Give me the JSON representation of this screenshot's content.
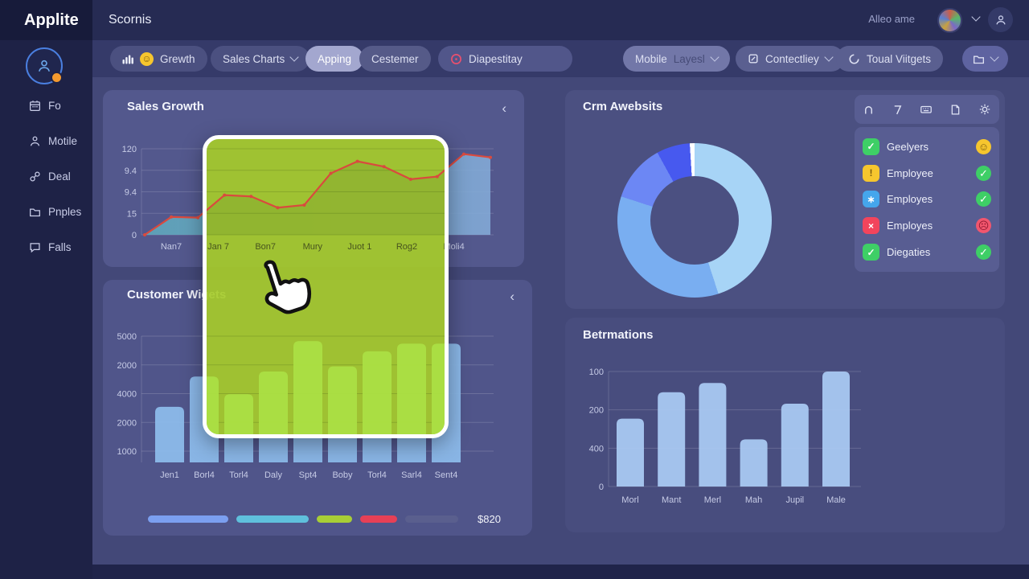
{
  "app": {
    "logo": "Applite",
    "page_title": "Scornis",
    "user_menu_label": "Alleo ame"
  },
  "sidebar": {
    "items": [
      {
        "label": "Fo",
        "icon": "calendar-icon"
      },
      {
        "label": "Motile",
        "icon": "person-icon"
      },
      {
        "label": "Deal",
        "icon": "link-icon"
      },
      {
        "label": "Pnples",
        "icon": "folder-icon"
      },
      {
        "label": "Falls",
        "icon": "chat-icon"
      }
    ]
  },
  "toolbar": {
    "growth_label": "Grewth",
    "sales_charts_label": "Sales Charts",
    "apping_label": "Apping",
    "cestemer_label": "Cestemer",
    "dispestlay_label": "Diapestitay",
    "mobile_label": "Mobile",
    "mobile_sub_label": "Layesl",
    "contectliey_label": "Contectliey",
    "toual_label": "Toual Viitgets"
  },
  "panels": {
    "sales_title": "Sales Growth",
    "customer_title": "Customer Wigets",
    "crm_title": "Crm Awebsits",
    "bet_title": "Betrmations"
  },
  "employees": {
    "rows": [
      {
        "name": "Geelyers",
        "badge_icon": "check",
        "badge_color": "#3ecf66",
        "status_icon": "smiley",
        "status_color": "#f6c62e"
      },
      {
        "name": "Employee",
        "badge_icon": "warning",
        "badge_color": "#f6c62e",
        "status_icon": "check",
        "status_color": "#3ecf66"
      },
      {
        "name": "Employes",
        "badge_icon": "asterisk",
        "badge_color": "#45a6ec",
        "status_icon": "check",
        "status_color": "#3ecf66"
      },
      {
        "name": "Employes",
        "badge_icon": "x",
        "badge_color": "#f2445c",
        "status_icon": "frown",
        "status_color": "#f2566e"
      },
      {
        "name": "Diegaties",
        "badge_icon": "check",
        "badge_color": "#3ecf66",
        "status_icon": "check",
        "status_color": "#3ecf66"
      }
    ]
  },
  "legend": {
    "pills": [
      {
        "color": "#7b9ff0",
        "width": 100
      },
      {
        "color": "#5fc0dc",
        "width": 90
      },
      {
        "color": "#a8ce36",
        "width": 44
      },
      {
        "color": "#e74056",
        "width": 46
      },
      {
        "color": "#5a5f8e",
        "width": 66
      }
    ],
    "value_label": "$820"
  },
  "chart_data": [
    {
      "id": "sales_growth",
      "type": "area",
      "title": "Sales Growth",
      "x_labels": [
        "Nan7",
        "Jan 7",
        "Bon7",
        "Mury",
        "Juot 1",
        "Rog2",
        "Moli4"
      ],
      "y_ticks": [
        "120",
        "9.4",
        "9.4",
        "15",
        "0"
      ],
      "ylim": [
        0,
        130
      ],
      "values": [
        0,
        27,
        26,
        60,
        58,
        41,
        45,
        93,
        111,
        103,
        84,
        88,
        122,
        117
      ],
      "line_color": "#d94a3e",
      "area_colors": [
        "#5fa9bc",
        "#84abd8"
      ],
      "grid": true,
      "legend_position": "none"
    },
    {
      "id": "customer_widget",
      "type": "bar",
      "title": "Customer Wigets",
      "categories": [
        "Jen1",
        "Borl4",
        "Torl4",
        "Daly",
        "Spt4",
        "Boby",
        "Torl4",
        "Sarl4",
        "Sent4"
      ],
      "y_ticks": [
        "5000",
        "2000",
        "4000",
        "2000",
        "1000"
      ],
      "ylim": [
        0,
        5000
      ],
      "values": [
        2200,
        3400,
        2700,
        3600,
        4800,
        3800,
        4400,
        4700,
        4700
      ],
      "bar_color": "#8cbaea",
      "grid": true,
      "legend_position": "bottom"
    },
    {
      "id": "crm_donut",
      "type": "pie",
      "title": "Crm Awebsits",
      "slices": [
        {
          "value": 45,
          "color": "#a7d4f6"
        },
        {
          "value": 35,
          "color": "#79aef1"
        },
        {
          "value": 12,
          "color": "#6c87f4"
        },
        {
          "value": 7,
          "color": "#4759ef"
        },
        {
          "value": 1,
          "color": "#ffffff"
        }
      ]
    },
    {
      "id": "betrmations",
      "type": "bar",
      "title": "Betrmations",
      "categories": [
        "Morl",
        "Mant",
        "Merl",
        "Mah",
        "Jupil",
        "Male"
      ],
      "y_ticks": [
        "100",
        "200",
        "400",
        "0"
      ],
      "ylim": [
        0,
        100
      ],
      "values": [
        59,
        82,
        90,
        41,
        72,
        100
      ],
      "bar_color": "#a9c8f2",
      "grid": true,
      "legend_position": "none"
    }
  ]
}
